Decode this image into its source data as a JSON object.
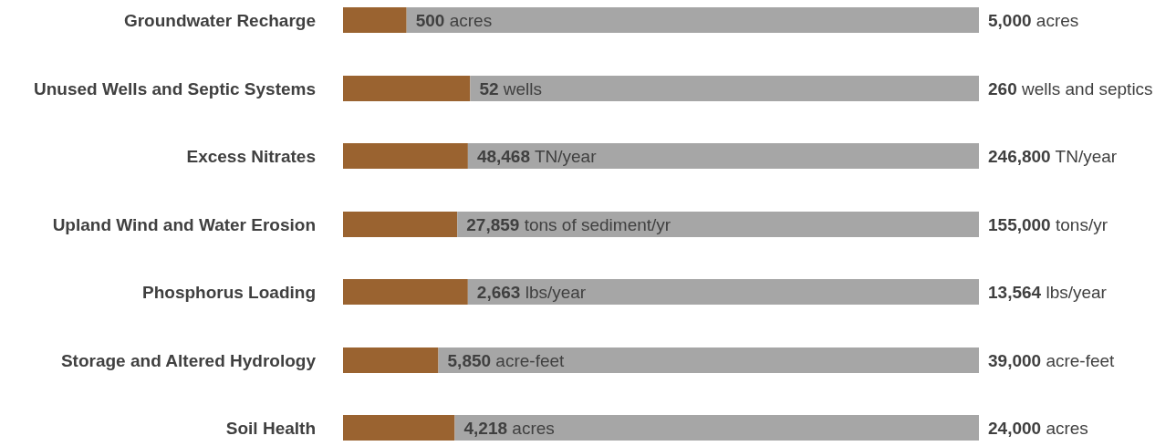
{
  "chart_data": [
    {
      "type": "bar",
      "orientation": "horizontal",
      "stacked": true,
      "tick_labels": "y",
      "categories": [
        "Groundwater Recharge"
      ],
      "xlim": [
        0,
        5000
      ],
      "totals": [
        "5,000 acres"
      ],
      "series": [
        {
          "color": "#9a6330",
          "values": [
            500
          ],
          "value_labels": [
            "500 acres"
          ]
        },
        {
          "color": "#a6a6a6",
          "values": [
            4500
          ]
        }
      ]
    },
    {
      "type": "bar",
      "orientation": "horizontal",
      "stacked": true,
      "tick_labels": "y",
      "categories": [
        "Unused Wells and Septic Systems"
      ],
      "xlim": [
        0,
        260
      ],
      "totals": [
        "260 wells and septics"
      ],
      "series": [
        {
          "color": "#9a6330",
          "values": [
            52
          ],
          "value_labels": [
            "52 wells"
          ]
        },
        {
          "color": "#a6a6a6",
          "values": [
            208
          ]
        }
      ]
    },
    {
      "type": "bar",
      "orientation": "horizontal",
      "stacked": true,
      "tick_labels": "y",
      "categories": [
        "Excess Nitrates"
      ],
      "xlim": [
        0,
        246800
      ],
      "totals": [
        "246,800 TN/year"
      ],
      "series": [
        {
          "color": "#9a6330",
          "values": [
            48468
          ],
          "value_labels": [
            "48,468 TN/year"
          ]
        },
        {
          "color": "#a6a6a6",
          "values": [
            198332
          ]
        }
      ]
    },
    {
      "type": "bar",
      "orientation": "horizontal",
      "stacked": true,
      "tick_labels": "y",
      "categories": [
        "Upland Wind and Water Erosion"
      ],
      "xlim": [
        0,
        155000
      ],
      "totals": [
        "155,000 tons/yr"
      ],
      "series": [
        {
          "color": "#9a6330",
          "values": [
            27859
          ],
          "value_labels": [
            "27,859 tons of sediment/yr"
          ]
        },
        {
          "color": "#a6a6a6",
          "values": [
            127141
          ]
        }
      ]
    },
    {
      "type": "bar",
      "orientation": "horizontal",
      "stacked": true,
      "tick_labels": "y",
      "categories": [
        "Phosphorus Loading"
      ],
      "xlim": [
        0,
        13564
      ],
      "totals": [
        "13,564 lbs/year"
      ],
      "series": [
        {
          "color": "#9a6330",
          "values": [
            2663
          ],
          "value_labels": [
            "2,663 lbs/year"
          ]
        },
        {
          "color": "#a6a6a6",
          "values": [
            10901
          ]
        }
      ]
    },
    {
      "type": "bar",
      "orientation": "horizontal",
      "stacked": true,
      "tick_labels": "y",
      "categories": [
        "Storage and Altered Hydrology"
      ],
      "xlim": [
        0,
        39000
      ],
      "totals": [
        "39,000 acre-feet"
      ],
      "series": [
        {
          "color": "#9a6330",
          "values": [
            5850
          ],
          "value_labels": [
            "5,850 acre-feet"
          ]
        },
        {
          "color": "#a6a6a6",
          "values": [
            33150
          ]
        }
      ]
    },
    {
      "type": "bar",
      "orientation": "horizontal",
      "stacked": true,
      "tick_labels": "y",
      "categories": [
        "Soil Health"
      ],
      "xlim": [
        0,
        24000
      ],
      "totals": [
        "24,000 acres"
      ],
      "series": [
        {
          "color": "#9a6330",
          "values": [
            4218
          ],
          "value_labels": [
            "4,218 acres"
          ]
        },
        {
          "color": "#a6a6a6",
          "values": [
            19782
          ]
        }
      ]
    }
  ]
}
